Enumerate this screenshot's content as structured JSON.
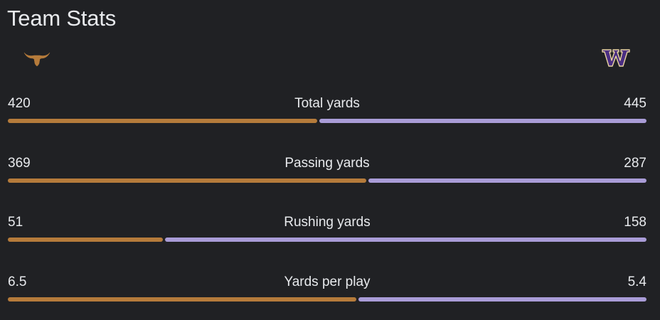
{
  "header": {
    "title": "Team Stats"
  },
  "teams": {
    "left": {
      "logo_icon": "texas-longhorn-logo-icon",
      "color": "#b57b3b"
    },
    "right": {
      "logo_icon": "washington-w-logo-icon",
      "color": "#a99cd7"
    }
  },
  "stats": [
    {
      "label": "Total yards",
      "left": "420",
      "right": "445"
    },
    {
      "label": "Passing yards",
      "left": "369",
      "right": "287"
    },
    {
      "label": "Rushing yards",
      "left": "51",
      "right": "158"
    },
    {
      "label": "Yards per play",
      "left": "6.5",
      "right": "5.4"
    }
  ]
}
